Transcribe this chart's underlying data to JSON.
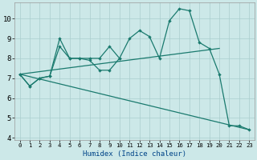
{
  "xlabel": "Humidex (Indice chaleur)",
  "x": [
    0,
    1,
    2,
    3,
    4,
    5,
    6,
    7,
    8,
    9,
    10,
    11,
    12,
    13,
    14,
    15,
    16,
    17,
    18,
    19,
    20,
    21,
    22,
    23
  ],
  "line1": [
    7.2,
    6.6,
    7.0,
    7.1,
    9.0,
    8.0,
    8.0,
    7.9,
    7.4,
    7.4,
    8.0,
    9.0,
    9.4,
    9.1,
    8.0,
    9.9,
    10.5,
    10.4,
    8.8,
    8.5,
    7.2,
    4.6,
    4.6,
    4.4
  ],
  "line2": [
    7.2,
    6.6,
    7.0,
    7.1,
    8.6,
    8.0,
    8.0,
    8.0,
    8.0,
    8.6,
    8.0,
    null,
    null,
    null,
    null,
    null,
    null,
    null,
    null,
    null,
    null,
    null,
    null,
    null
  ],
  "line3_start": 0,
  "line3_end": 20,
  "line3_y0": 7.2,
  "line3_y1": 8.5,
  "line4_start": 0,
  "line4_end": 23,
  "line4_y0": 7.2,
  "line4_y1": 4.4,
  "yticks": [
    4,
    5,
    6,
    7,
    8,
    9,
    10
  ],
  "ylim_bottom": 3.9,
  "ylim_top": 10.8,
  "xlim_left": -0.5,
  "xlim_right": 23.5,
  "color": "#1a7a6e",
  "bg_color": "#cce8e8",
  "grid_color": "#aacece",
  "xlabel_color": "#004488",
  "xlabel_fontsize": 6.5,
  "tick_fontsize_x": 5.2,
  "tick_fontsize_y": 6.5,
  "linewidth": 0.9,
  "markersize": 2.2
}
